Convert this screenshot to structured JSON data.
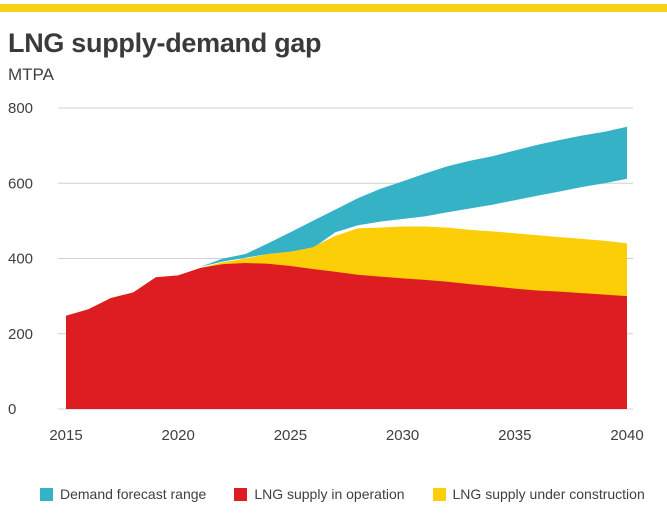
{
  "colors": {
    "accent_bar": "#f7d117",
    "demand": "#35b2c6",
    "operation": "#dd1d21",
    "construction": "#fbce07",
    "gridline": "#d0d0d0"
  },
  "chart_data": {
    "type": "area",
    "title": "LNG supply-demand gap",
    "ylabel": "MTPA",
    "xlabel": "",
    "xlim": [
      2015,
      2040
    ],
    "ylim": [
      0,
      800
    ],
    "x_ticks": [
      2015,
      2020,
      2025,
      2030,
      2035,
      2040
    ],
    "y_ticks": [
      0,
      200,
      400,
      600,
      800
    ],
    "grid": "horizontal",
    "legend_position": "bottom",
    "series": [
      {
        "name": "LNG supply in operation",
        "color_key": "operation",
        "x": [
          2015,
          2016,
          2017,
          2018,
          2019,
          2020,
          2021,
          2022,
          2023,
          2024,
          2025,
          2026,
          2027,
          2028,
          2029,
          2030,
          2031,
          2032,
          2033,
          2034,
          2035,
          2036,
          2037,
          2038,
          2039,
          2040
        ],
        "values": [
          248,
          265,
          295,
          310,
          350,
          355,
          375,
          385,
          388,
          386,
          380,
          372,
          365,
          357,
          352,
          347,
          343,
          338,
          332,
          326,
          320,
          315,
          312,
          308,
          304,
          300
        ]
      },
      {
        "name": "LNG supply under construction",
        "color_key": "construction",
        "x": [
          2015,
          2016,
          2017,
          2018,
          2019,
          2020,
          2021,
          2022,
          2023,
          2024,
          2025,
          2026,
          2027,
          2028,
          2029,
          2030,
          2031,
          2032,
          2033,
          2034,
          2035,
          2036,
          2037,
          2038,
          2039,
          2040
        ],
        "values": [
          248,
          265,
          295,
          310,
          350,
          355,
          375,
          390,
          400,
          412,
          418,
          430,
          460,
          480,
          482,
          485,
          485,
          482,
          476,
          472,
          467,
          462,
          457,
          452,
          447,
          440
        ]
      },
      {
        "name": "Demand forecast range",
        "color_key": "demand",
        "x": [
          2021,
          2022,
          2023,
          2024,
          2025,
          2026,
          2027,
          2028,
          2029,
          2030,
          2031,
          2032,
          2033,
          2034,
          2035,
          2036,
          2037,
          2038,
          2039,
          2040
        ],
        "low": [
          378,
          392,
          402,
          412,
          418,
          427,
          470,
          488,
          498,
          505,
          512,
          523,
          533,
          543,
          555,
          567,
          578,
          590,
          600,
          612
        ],
        "high": [
          378,
          400,
          412,
          440,
          470,
          500,
          530,
          560,
          585,
          605,
          626,
          645,
          660,
          672,
          687,
          702,
          715,
          727,
          737,
          750
        ]
      }
    ]
  },
  "legend": [
    {
      "label": "Demand forecast range",
      "color_key": "demand"
    },
    {
      "label": "LNG supply in operation",
      "color_key": "operation"
    },
    {
      "label": "LNG supply under construction",
      "color_key": "construction"
    }
  ]
}
